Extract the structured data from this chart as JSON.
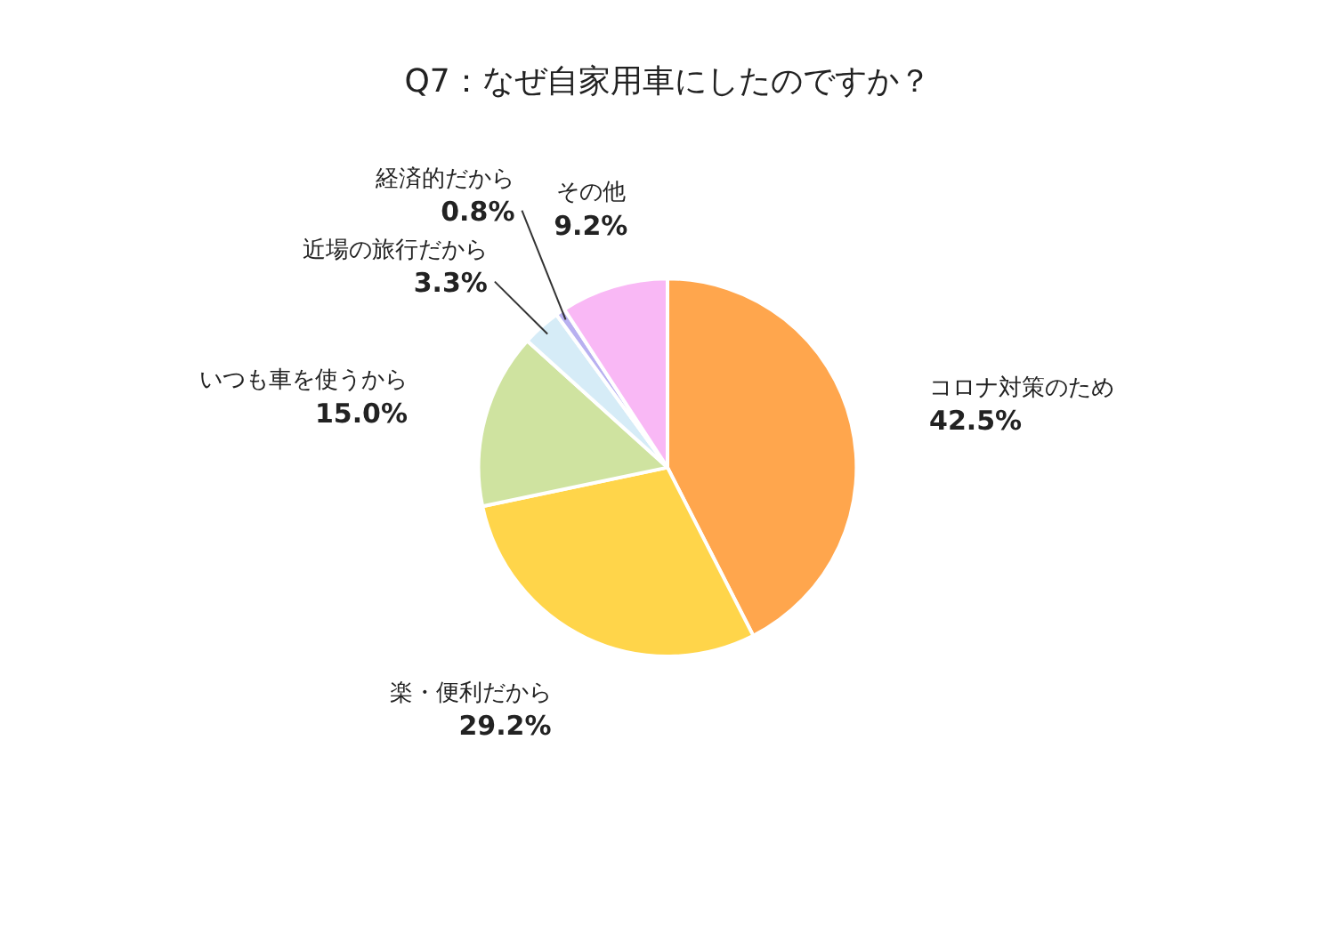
{
  "chart_data": {
    "type": "pie",
    "title": "Q7：なぜ自家用車にしたのですか？",
    "categories": [
      "コロナ対策のため",
      "楽・便利だから",
      "いつも車を使うから",
      "近場の旅行だから",
      "経済的だから",
      "その他"
    ],
    "values": [
      42.5,
      29.2,
      15.0,
      3.3,
      0.8,
      9.2
    ],
    "value_labels": [
      "42.5%",
      "29.2%",
      "15.0%",
      "3.3%",
      "0.8%",
      "9.2%"
    ],
    "colors": [
      "#ffa64d",
      "#ffd54a",
      "#cfe3a0",
      "#d6ecf7",
      "#b8b0f0",
      "#f9b8f5"
    ],
    "legend": false
  }
}
